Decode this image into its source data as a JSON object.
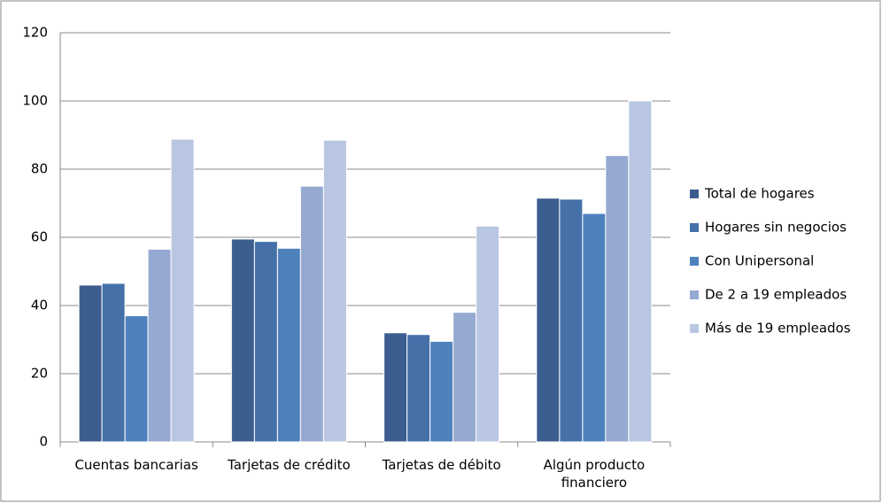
{
  "chart_data": {
    "type": "bar",
    "categories": [
      "Cuentas bancarias",
      "Tarjetas de crédito",
      "Tarjetas de débito",
      "Algún producto financiero"
    ],
    "series": [
      {
        "name": "Total de hogares",
        "color": "#3c5e8f",
        "values": [
          46,
          59.5,
          32,
          71.5
        ]
      },
      {
        "name": "Hogares sin negocios",
        "color": "#4571a8",
        "values": [
          46.5,
          58.8,
          31.5,
          71.2
        ]
      },
      {
        "name": "Con Unipersonal",
        "color": "#4f81bd",
        "values": [
          37,
          56.8,
          29.5,
          67
        ]
      },
      {
        "name": "De 2 a 19 empleados",
        "color": "#95a9d1",
        "values": [
          56.5,
          75,
          38,
          84
        ]
      },
      {
        "name": "Más de 19 empleados",
        "color": "#b9c6e1",
        "values": [
          88.8,
          88.5,
          63.3,
          100
        ]
      }
    ],
    "ylim": [
      0,
      120
    ],
    "yticks": [
      0,
      20,
      40,
      60,
      80,
      100,
      120
    ],
    "grid": true,
    "legend": "right"
  }
}
